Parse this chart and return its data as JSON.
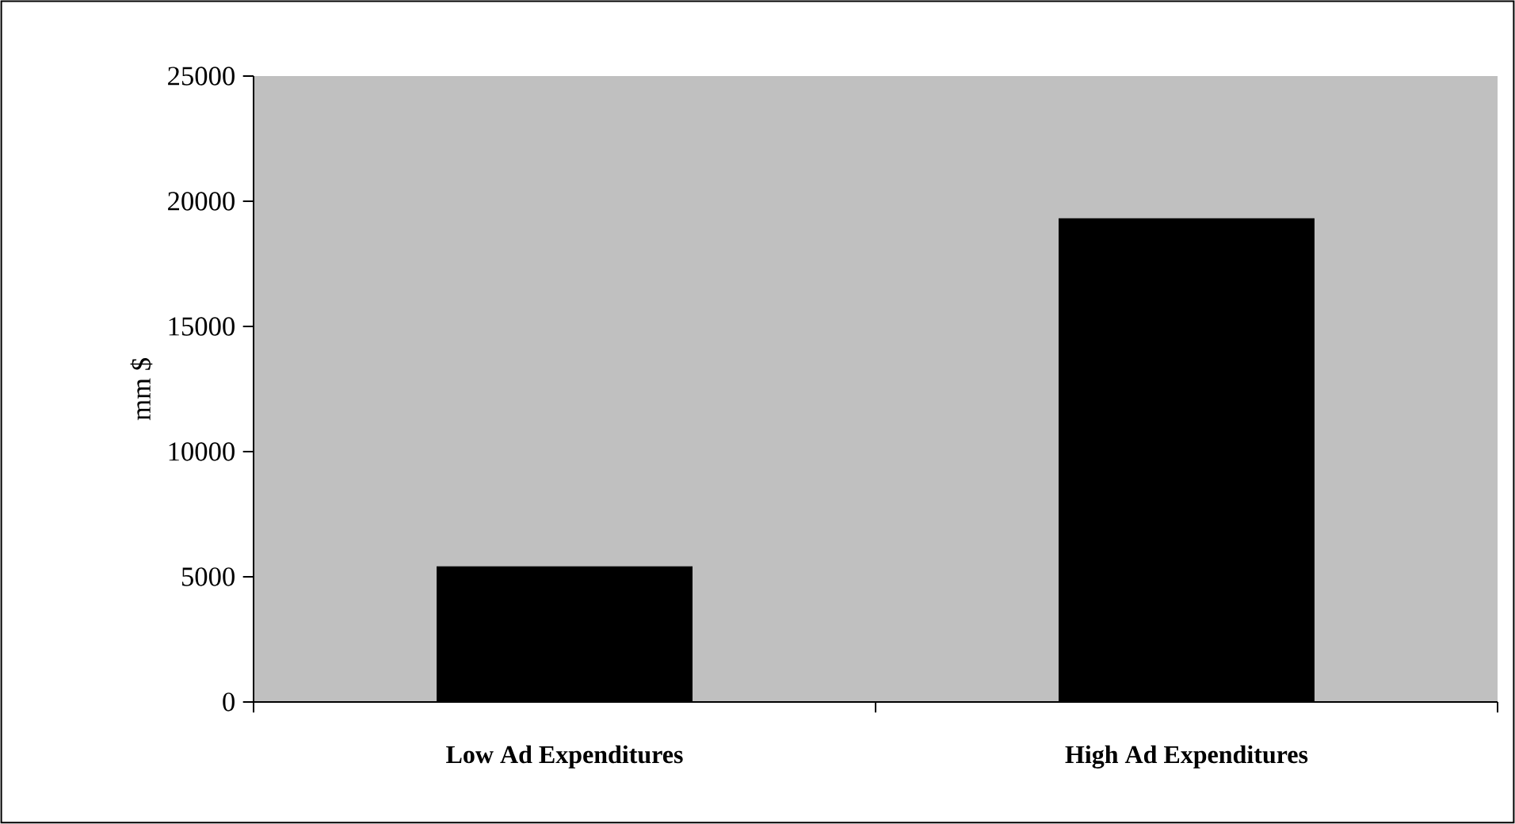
{
  "chart_data": {
    "type": "bar",
    "ylabel": "mm $",
    "categories": [
      "Low Ad Expenditures",
      "High Ad Expenditures"
    ],
    "values": [
      5400,
      19300
    ],
    "color": "#000000",
    "ylim": [
      0,
      25000
    ],
    "yticks": [
      0,
      5000,
      10000,
      15000,
      20000,
      25000
    ]
  }
}
